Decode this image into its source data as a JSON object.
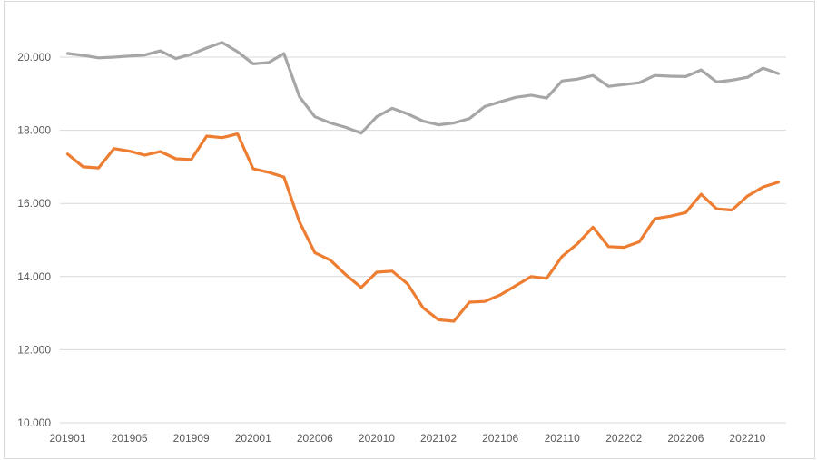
{
  "chart_data": {
    "type": "line",
    "title": "",
    "xlabel": "",
    "ylabel": "",
    "legend": "none",
    "grid": true,
    "background": "#FFFFFF",
    "border_color": "#D9D9D9",
    "gridline_color": "#D9D9D9",
    "axis_text_color": "#595959",
    "ylim": [
      10000,
      21000
    ],
    "y_ticks": [
      {
        "value": 10000,
        "label": "10.000"
      },
      {
        "value": 12000,
        "label": "12.000"
      },
      {
        "value": 14000,
        "label": "14.000"
      },
      {
        "value": 16000,
        "label": "16.000"
      },
      {
        "value": 18000,
        "label": "18.000"
      },
      {
        "value": 20000,
        "label": "20.000"
      }
    ],
    "x_tick_interval": 4,
    "x_tick_labels": [
      "201901",
      "201905",
      "201909",
      "202001",
      "202006",
      "202010",
      "202102",
      "202106",
      "202110",
      "202202",
      "202206",
      "202210"
    ],
    "categories": [
      "201901",
      "201902",
      "201903",
      "201904",
      "201905",
      "201906",
      "201907",
      "201908",
      "201909",
      "201910",
      "201911",
      "201912",
      "202001",
      "202002",
      "202003",
      "202005",
      "202006",
      "202007",
      "202008",
      "202009",
      "202010",
      "202011",
      "202012",
      "202101",
      "202102",
      "202103",
      "202104",
      "202105",
      "202106",
      "202107",
      "202108",
      "202109",
      "202110",
      "202111",
      "202112",
      "202201",
      "202202",
      "202203",
      "202204",
      "202205",
      "202206",
      "202207",
      "202208",
      "202209",
      "202210",
      "202211",
      "202212"
    ],
    "series": [
      {
        "name": "gray-series",
        "color": "#A6A6A6",
        "values": [
          20100,
          20050,
          19980,
          20000,
          20030,
          20060,
          20170,
          19960,
          20080,
          20250,
          20400,
          20150,
          19820,
          19850,
          20100,
          18920,
          18370,
          18200,
          18080,
          17920,
          18370,
          18600,
          18450,
          18250,
          18150,
          18200,
          18320,
          18650,
          18780,
          18900,
          18960,
          18880,
          19350,
          19400,
          19500,
          19200,
          19250,
          19300,
          19500,
          19480,
          19470,
          19650,
          19320,
          19370,
          19450,
          19700,
          19550
        ]
      },
      {
        "name": "orange-series",
        "color": "#ED7D31",
        "values": [
          17350,
          17000,
          16970,
          17500,
          17430,
          17320,
          17420,
          17220,
          17200,
          17840,
          17800,
          17900,
          16950,
          16850,
          16720,
          15500,
          14650,
          14450,
          14050,
          13700,
          14120,
          14150,
          13800,
          13150,
          12820,
          12780,
          13300,
          13320,
          13500,
          13750,
          14000,
          13950,
          14550,
          14900,
          15350,
          14820,
          14800,
          14950,
          15580,
          15650,
          15750,
          16250,
          15850,
          15820,
          16200,
          16450,
          16580
        ]
      }
    ]
  }
}
